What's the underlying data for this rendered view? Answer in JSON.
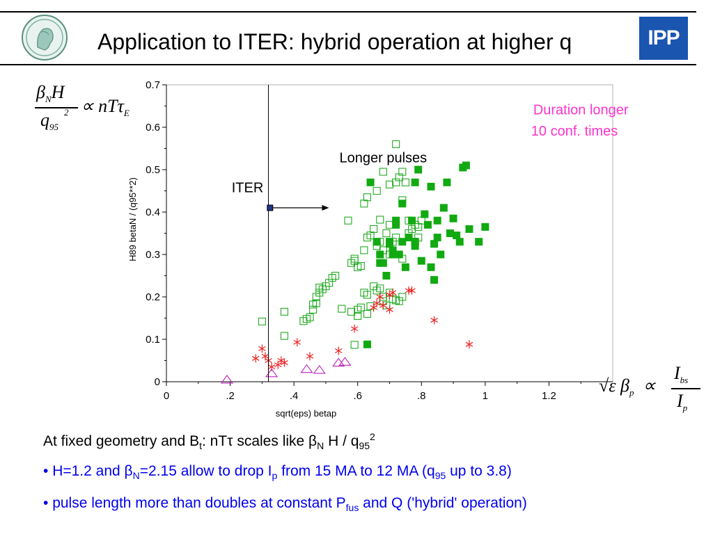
{
  "slide": {
    "title": "Application to ITER: hybrid operation at higher q",
    "logo_right_text": "IPP"
  },
  "formulas": {
    "left_numerator_beta": "β",
    "left_numerator_sub": "N",
    "left_numerator_H": "H",
    "left_denominator_q": "q",
    "left_denominator_sub": "95",
    "left_denominator_sup": "2",
    "left_rhs": "∝ nTτ",
    "left_rhs_sub": "E",
    "right_lhs": "√ε β",
    "right_lhs_sub": "p",
    "right_prop": "∝",
    "right_num": "I",
    "right_num_sub": "bs",
    "right_den": "I",
    "right_den_sub": "p"
  },
  "chart_data": {
    "type": "scatter",
    "xlabel": "sqrt(eps) betap",
    "ylabel": "H89 betaN / (q95**2)",
    "xlim": [
      0,
      1.4
    ],
    "ylim": [
      0,
      0.7
    ],
    "xticks": [
      {
        "v": 0,
        "label": "0"
      },
      {
        "v": 0.2,
        "label": ".2"
      },
      {
        "v": 0.4,
        "label": ".4"
      },
      {
        "v": 0.6,
        "label": ".6"
      },
      {
        "v": 0.8,
        "label": ".8"
      },
      {
        "v": 1.0,
        "label": "1"
      },
      {
        "v": 1.2,
        "label": "1.2"
      }
    ],
    "yticks": [
      {
        "v": 0,
        "label": "0"
      },
      {
        "v": 0.1,
        "label": "0.1"
      },
      {
        "v": 0.2,
        "label": "0.2"
      },
      {
        "v": 0.3,
        "label": "0.3"
      },
      {
        "v": 0.4,
        "label": "0.4"
      },
      {
        "v": 0.5,
        "label": "0.5"
      },
      {
        "v": 0.6,
        "label": "0.6"
      },
      {
        "v": 0.7,
        "label": "0.7"
      }
    ],
    "grid": false,
    "iter_point": {
      "label": "ITER",
      "x": 0.325,
      "y": 0.41
    },
    "iter_line_x": 0.32,
    "arrow_to": {
      "x": 0.51,
      "y": 0.41,
      "label": "Longer pulses"
    },
    "annotation": {
      "line1": "Duration longer",
      "line2": "10 conf. times",
      "color": "#ff33cc"
    },
    "series": [
      {
        "marker": "open-square",
        "color": "#22aa22",
        "points": [
          [
            0.3,
            0.142
          ],
          [
            0.37,
            0.108
          ],
          [
            0.37,
            0.165
          ],
          [
            0.43,
            0.143
          ],
          [
            0.44,
            0.148
          ],
          [
            0.45,
            0.152
          ],
          [
            0.46,
            0.182
          ],
          [
            0.46,
            0.17
          ],
          [
            0.47,
            0.185
          ],
          [
            0.47,
            0.2
          ],
          [
            0.48,
            0.21
          ],
          [
            0.48,
            0.222
          ],
          [
            0.49,
            0.218
          ],
          [
            0.5,
            0.225
          ],
          [
            0.51,
            0.233
          ],
          [
            0.52,
            0.245
          ],
          [
            0.53,
            0.25
          ],
          [
            0.55,
            0.172
          ],
          [
            0.58,
            0.165
          ],
          [
            0.59,
            0.087
          ],
          [
            0.6,
            0.155
          ],
          [
            0.6,
            0.17
          ],
          [
            0.61,
            0.175
          ],
          [
            0.62,
            0.21
          ],
          [
            0.63,
            0.205
          ],
          [
            0.63,
            0.16
          ],
          [
            0.64,
            0.178
          ],
          [
            0.65,
            0.225
          ],
          [
            0.66,
            0.215
          ],
          [
            0.67,
            0.22
          ],
          [
            0.68,
            0.19
          ],
          [
            0.68,
            0.2
          ],
          [
            0.69,
            0.18
          ],
          [
            0.7,
            0.21
          ],
          [
            0.71,
            0.195
          ],
          [
            0.72,
            0.192
          ],
          [
            0.73,
            0.19
          ],
          [
            0.74,
            0.2
          ],
          [
            0.58,
            0.28
          ],
          [
            0.59,
            0.285
          ],
          [
            0.59,
            0.29
          ],
          [
            0.6,
            0.27
          ],
          [
            0.61,
            0.273
          ],
          [
            0.62,
            0.31
          ],
          [
            0.63,
            0.34
          ],
          [
            0.64,
            0.345
          ],
          [
            0.65,
            0.36
          ],
          [
            0.66,
            0.32
          ],
          [
            0.67,
            0.33
          ],
          [
            0.68,
            0.31
          ],
          [
            0.69,
            0.35
          ],
          [
            0.7,
            0.3
          ],
          [
            0.71,
            0.33
          ],
          [
            0.72,
            0.34
          ],
          [
            0.74,
            0.29
          ],
          [
            0.76,
            0.35
          ],
          [
            0.77,
            0.36
          ],
          [
            0.78,
            0.37
          ],
          [
            0.79,
            0.365
          ],
          [
            0.8,
            0.38
          ],
          [
            0.57,
            0.38
          ],
          [
            0.62,
            0.42
          ],
          [
            0.66,
            0.45
          ],
          [
            0.68,
            0.495
          ],
          [
            0.7,
            0.465
          ],
          [
            0.72,
            0.47
          ],
          [
            0.73,
            0.482
          ],
          [
            0.74,
            0.495
          ],
          [
            0.72,
            0.56
          ],
          [
            0.74,
            0.428
          ],
          [
            0.75,
            0.47
          ],
          [
            0.63,
            0.435
          ],
          [
            0.67,
            0.382
          ],
          [
            0.7,
            0.37
          ],
          [
            0.76,
            0.38
          ],
          [
            0.78,
            0.33
          ],
          [
            0.79,
            0.34
          ]
        ]
      },
      {
        "marker": "filled-square",
        "color": "#11aa11",
        "points": [
          [
            0.63,
            0.088
          ],
          [
            0.64,
            0.47
          ],
          [
            0.66,
            0.33
          ],
          [
            0.67,
            0.3
          ],
          [
            0.68,
            0.28
          ],
          [
            0.69,
            0.25
          ],
          [
            0.7,
            0.33
          ],
          [
            0.71,
            0.3
          ],
          [
            0.72,
            0.38
          ],
          [
            0.72,
            0.37
          ],
          [
            0.73,
            0.3
          ],
          [
            0.74,
            0.42
          ],
          [
            0.75,
            0.27
          ],
          [
            0.76,
            0.34
          ],
          [
            0.77,
            0.38
          ],
          [
            0.78,
            0.32
          ],
          [
            0.78,
            0.33
          ],
          [
            0.79,
            0.5
          ],
          [
            0.8,
            0.285
          ],
          [
            0.81,
            0.395
          ],
          [
            0.82,
            0.37
          ],
          [
            0.83,
            0.46
          ],
          [
            0.83,
            0.27
          ],
          [
            0.84,
            0.24
          ],
          [
            0.84,
            0.325
          ],
          [
            0.85,
            0.38
          ],
          [
            0.85,
            0.34
          ],
          [
            0.86,
            0.3
          ],
          [
            0.87,
            0.41
          ],
          [
            0.88,
            0.47
          ],
          [
            0.89,
            0.35
          ],
          [
            0.9,
            0.385
          ],
          [
            0.91,
            0.345
          ],
          [
            0.92,
            0.33
          ],
          [
            0.93,
            0.505
          ],
          [
            0.94,
            0.51
          ],
          [
            0.95,
            0.36
          ],
          [
            0.98,
            0.33
          ],
          [
            1.0,
            0.365
          ],
          [
            0.67,
            0.28
          ],
          [
            0.71,
            0.31
          ],
          [
            0.7,
            0.325
          ],
          [
            0.78,
            0.47
          ],
          [
            0.74,
            0.33
          ]
        ]
      },
      {
        "marker": "asterisk",
        "color": "#ee2222",
        "points": [
          [
            0.28,
            0.055
          ],
          [
            0.3,
            0.078
          ],
          [
            0.31,
            0.06
          ],
          [
            0.32,
            0.05
          ],
          [
            0.33,
            0.035
          ],
          [
            0.35,
            0.04
          ],
          [
            0.36,
            0.05
          ],
          [
            0.37,
            0.045
          ],
          [
            0.41,
            0.093
          ],
          [
            0.45,
            0.06
          ],
          [
            0.54,
            0.073
          ],
          [
            0.59,
            0.125
          ],
          [
            0.65,
            0.175
          ],
          [
            0.66,
            0.185
          ],
          [
            0.67,
            0.2
          ],
          [
            0.68,
            0.18
          ],
          [
            0.7,
            0.17
          ],
          [
            0.7,
            0.205
          ],
          [
            0.71,
            0.21
          ],
          [
            0.76,
            0.215
          ],
          [
            0.77,
            0.215
          ],
          [
            0.84,
            0.145
          ],
          [
            0.95,
            0.088
          ]
        ]
      },
      {
        "marker": "open-triangle",
        "color": "#bb22bb",
        "points": [
          [
            0.19,
            0.005
          ],
          [
            0.33,
            0.02
          ],
          [
            0.44,
            0.03
          ],
          [
            0.48,
            0.028
          ],
          [
            0.54,
            0.045
          ],
          [
            0.56,
            0.047
          ]
        ]
      }
    ]
  },
  "footer": {
    "line1": {
      "a": "At fixed geometry and B",
      "a_sub": "t",
      "b": ": nT",
      "tau": "τ",
      "c": " scales like ",
      "beta": "β",
      "beta_sub": "N",
      "d": " H / q",
      "q_sub": "95",
      "q_sup": "2"
    },
    "line2": {
      "bullet": "•",
      "a": "H=1.2 and ",
      "beta": "β",
      "beta_sub": "N",
      "b": "=2.15 allow to drop I",
      "ip_sub": "p",
      "c": " from 15 MA to 12 MA (q",
      "q_sub": "95",
      "d": " up to 3.8)"
    },
    "line3": {
      "bullet": "•",
      "a": "pulse length more than doubles at constant P",
      "pf_sub": "fus",
      "b": " and Q ('hybrid' operation)"
    }
  }
}
